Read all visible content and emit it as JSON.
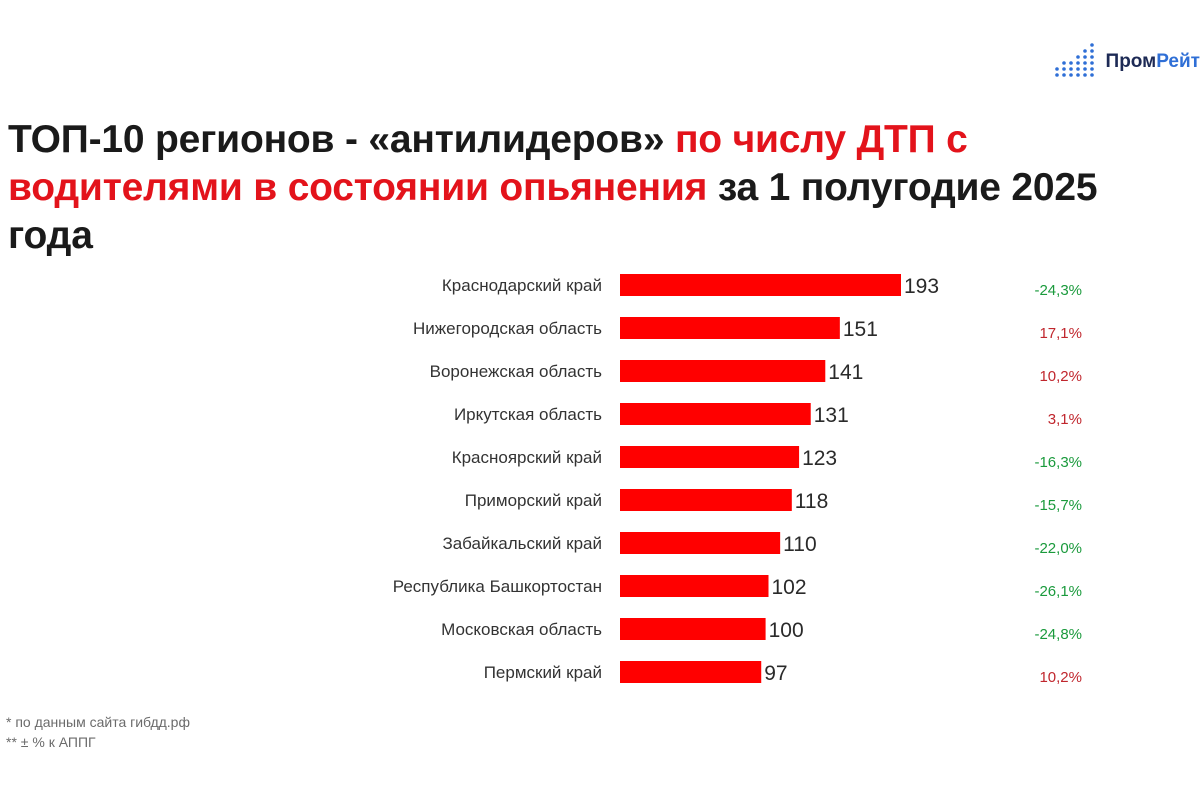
{
  "logo": {
    "text_part1": "Пром",
    "text_part2": "Рейт"
  },
  "title": {
    "part1": "ТОП-10 регионов - «антилидеров» ",
    "part2_highlight": "по числу ДТП с водителями в состоянии опьянения",
    "part3": " за 1 полугодие 2025 года"
  },
  "colors": {
    "bar": "#ff0000",
    "positive_change": "#c0262d",
    "negative_change": "#1a9a3c",
    "title_highlight": "#e3131b"
  },
  "chart_data": {
    "type": "bar",
    "orientation": "horizontal",
    "categories": [
      "Краснодарский край",
      "Нижегородская область",
      "Воронежская область",
      "Иркутская область",
      "Красноярский край",
      "Приморский край",
      "Забайкальский край",
      "Республика Башкортостан",
      "Московская область",
      "Пермский край"
    ],
    "values": [
      193,
      151,
      141,
      131,
      123,
      118,
      110,
      102,
      100,
      97
    ],
    "value_labels": [
      "193",
      "151",
      "141",
      "131",
      "123",
      "118",
      "110",
      "102",
      "100",
      "97"
    ],
    "changes": [
      "-24,3%",
      "17,1%",
      "10,2%",
      "3,1%",
      "-16,3%",
      "-15,7%",
      "-22,0%",
      "-26,1%",
      "-24,8%",
      "10,2%"
    ],
    "change_signs": [
      "negative",
      "positive",
      "positive",
      "positive",
      "negative",
      "negative",
      "negative",
      "negative",
      "negative",
      "positive"
    ],
    "xlim": [
      0,
      193
    ],
    "grid": false,
    "legend": "none"
  },
  "footnotes": [
    "* по данным сайта гибдд.рф",
    "** ± % к АППГ"
  ]
}
